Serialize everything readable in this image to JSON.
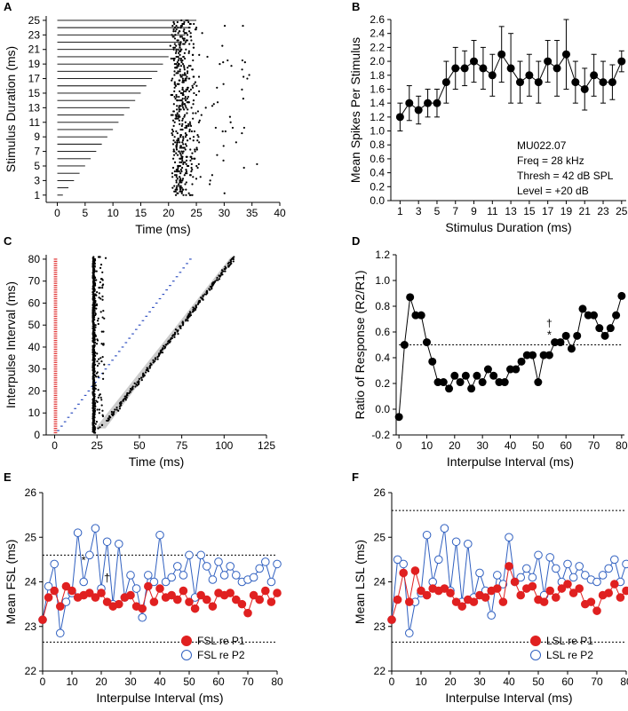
{
  "panels": {
    "A": {
      "label": "A"
    },
    "B": {
      "label": "B"
    },
    "C": {
      "label": "C"
    },
    "D": {
      "label": "D"
    },
    "E": {
      "label": "E"
    },
    "F": {
      "label": "F"
    }
  },
  "chart_data": [
    {
      "id": "A",
      "type": "scatter",
      "xlabel": "Time (ms)",
      "ylabel": "Stimulus Duration (ms)",
      "xlim": [
        -2,
        40
      ],
      "ylim": [
        0,
        25.6
      ],
      "xticks": [
        0,
        5,
        10,
        15,
        20,
        25,
        30,
        35,
        40
      ],
      "yticks": [
        1,
        3,
        5,
        7,
        9,
        11,
        13,
        15,
        17,
        19,
        21,
        23,
        25
      ],
      "stimulus_bars": "horizontal line from 0 to duration for each trial duration 1-25 ms",
      "spike_time_range": [
        20,
        38
      ],
      "spike_time_mode": 22.5
    },
    {
      "id": "B",
      "type": "line",
      "xlabel": "Stimulus Duration (ms)",
      "ylabel": "Mean Spikes Per Stimulus",
      "xlim": [
        0,
        25.5
      ],
      "ylim": [
        0,
        2.6
      ],
      "xticks": [
        1,
        3,
        5,
        7,
        9,
        11,
        13,
        15,
        17,
        19,
        21,
        23,
        25
      ],
      "yticks": [
        0.0,
        0.2,
        0.4,
        0.6,
        0.8,
        1.0,
        1.2,
        1.4,
        1.6,
        1.8,
        2.0,
        2.2,
        2.4,
        2.6
      ],
      "x": [
        1,
        2,
        3,
        4,
        5,
        6,
        7,
        8,
        9,
        10,
        11,
        12,
        13,
        14,
        15,
        16,
        17,
        18,
        19,
        20,
        21,
        22,
        23,
        24,
        25
      ],
      "y": [
        1.2,
        1.4,
        1.3,
        1.4,
        1.4,
        1.7,
        1.9,
        1.9,
        2.0,
        1.9,
        1.8,
        2.1,
        1.9,
        1.7,
        1.8,
        1.7,
        2.0,
        1.9,
        2.1,
        1.7,
        1.6,
        1.8,
        1.7,
        1.7,
        2.0
      ],
      "err": [
        0.2,
        0.25,
        0.2,
        0.2,
        0.2,
        0.3,
        0.3,
        0.25,
        0.3,
        0.3,
        0.3,
        0.4,
        0.5,
        0.3,
        0.3,
        0.3,
        0.3,
        0.4,
        0.5,
        0.3,
        0.3,
        0.3,
        0.3,
        0.25,
        0.15
      ],
      "annotation": [
        "MU022.07",
        "Freq = 28 kHz",
        "Thresh = 42 dB SPL",
        "Level = +20 dB"
      ]
    },
    {
      "id": "C",
      "type": "scatter",
      "xlabel": "Time (ms)",
      "ylabel": "Interpulse Interval (ms)",
      "xlim": [
        -5,
        125
      ],
      "ylim": [
        0,
        82
      ],
      "xticks": [
        0,
        25,
        50,
        75,
        100,
        125
      ],
      "yticks": [
        0,
        10,
        20,
        30,
        40,
        50,
        60,
        70,
        80
      ],
      "pulse1_color": "#e03030",
      "pulse2_color": "#3050c0",
      "pulse1_time": 0,
      "response1_time": 23,
      "response2_offset": 25
    },
    {
      "id": "D",
      "type": "line",
      "xlabel": "Interpulse Interval (ms)",
      "ylabel": "Ratio of Response (R2/R1)",
      "xlim": [
        -1,
        81
      ],
      "ylim": [
        -0.2,
        1.2
      ],
      "xticks": [
        0,
        10,
        20,
        30,
        40,
        50,
        60,
        70,
        80
      ],
      "yticks": [
        -0.2,
        0.0,
        0.2,
        0.4,
        0.6,
        0.8,
        1.0,
        1.2
      ],
      "reference_line": 0.5,
      "x": [
        0,
        2,
        4,
        6,
        8,
        10,
        12,
        14,
        16,
        18,
        20,
        22,
        24,
        26,
        28,
        30,
        32,
        34,
        36,
        38,
        40,
        42,
        44,
        46,
        48,
        50,
        52,
        54,
        56,
        58,
        60,
        62,
        64,
        66,
        68,
        70,
        72,
        74,
        76,
        78,
        80
      ],
      "y": [
        -0.06,
        0.5,
        0.87,
        0.73,
        0.73,
        0.52,
        0.37,
        0.21,
        0.21,
        0.16,
        0.26,
        0.21,
        0.26,
        0.16,
        0.26,
        0.21,
        0.31,
        0.26,
        0.21,
        0.21,
        0.31,
        0.31,
        0.37,
        0.42,
        0.42,
        0.21,
        0.42,
        0.42,
        0.52,
        0.52,
        0.57,
        0.47,
        0.57,
        0.78,
        0.73,
        0.73,
        0.63,
        0.57,
        0.63,
        0.73,
        0.88
      ],
      "marks": [
        {
          "x": 54,
          "text": "†"
        },
        {
          "x": 54,
          "text": "*"
        }
      ]
    },
    {
      "id": "E",
      "type": "line",
      "xlabel": "Interpulse Interval (ms)",
      "ylabel": "Mean FSL (ms)",
      "xlim": [
        0,
        80
      ],
      "ylim": [
        22,
        26
      ],
      "xticks": [
        0,
        10,
        20,
        30,
        40,
        50,
        60,
        70,
        80
      ],
      "yticks": [
        22,
        23,
        24,
        25,
        26
      ],
      "ref_lines": [
        24.6,
        22.65
      ],
      "x": [
        0,
        2,
        4,
        6,
        8,
        10,
        12,
        14,
        16,
        18,
        20,
        22,
        24,
        26,
        28,
        30,
        32,
        34,
        36,
        38,
        40,
        42,
        44,
        46,
        48,
        50,
        52,
        54,
        56,
        58,
        60,
        62,
        64,
        66,
        68,
        70,
        72,
        74,
        76,
        78,
        80
      ],
      "series": [
        {
          "name": "FSL re P1",
          "color": "#e02020",
          "filled": true,
          "values": [
            23.15,
            23.65,
            23.8,
            23.45,
            23.9,
            23.8,
            23.65,
            23.7,
            23.75,
            23.65,
            23.75,
            23.55,
            23.45,
            23.5,
            23.65,
            23.7,
            23.45,
            23.4,
            23.9,
            23.55,
            23.85,
            23.65,
            23.7,
            23.6,
            23.8,
            23.55,
            23.4,
            23.7,
            23.6,
            23.45,
            23.75,
            23.7,
            23.75,
            23.6,
            23.5,
            23.3,
            23.7,
            23.6,
            23.8,
            23.55,
            23.75
          ]
        },
        {
          "name": "FSL re P2",
          "color": "#3060c0",
          "filled": false,
          "values": [
            23.15,
            23.9,
            24.4,
            22.85,
            23.55,
            23.75,
            25.1,
            24.0,
            24.6,
            25.2,
            23.85,
            24.9,
            23.5,
            24.85,
            23.65,
            24.15,
            23.85,
            23.2,
            24.15,
            24.0,
            25.05,
            24.0,
            24.1,
            24.35,
            24.15,
            24.6,
            23.65,
            24.6,
            24.35,
            24.05,
            24.45,
            24.15,
            24.35,
            24.15,
            24.0,
            24.05,
            24.1,
            24.3,
            24.45,
            24.0,
            24.4
          ]
        }
      ],
      "marks": [
        {
          "x": 14,
          "y": 24.4,
          "text": "*"
        },
        {
          "x": 22,
          "y": 24.0,
          "text": "†"
        }
      ]
    },
    {
      "id": "F",
      "type": "line",
      "xlabel": "Interpulse Interval (ms)",
      "ylabel": "Mean LSL (ms)",
      "xlim": [
        0,
        80
      ],
      "ylim": [
        22,
        26
      ],
      "xticks": [
        0,
        10,
        20,
        30,
        40,
        50,
        60,
        70,
        80
      ],
      "yticks": [
        22,
        23,
        24,
        25,
        26
      ],
      "ref_lines": [
        25.6,
        22.65
      ],
      "x": [
        0,
        2,
        4,
        6,
        8,
        10,
        12,
        14,
        16,
        18,
        20,
        22,
        24,
        26,
        28,
        30,
        32,
        34,
        36,
        38,
        40,
        42,
        44,
        46,
        48,
        50,
        52,
        54,
        56,
        58,
        60,
        62,
        64,
        66,
        68,
        70,
        72,
        74,
        76,
        78,
        80
      ],
      "series": [
        {
          "name": "LSL re P1",
          "color": "#e02020",
          "filled": true,
          "values": [
            23.15,
            23.6,
            24.2,
            23.55,
            24.25,
            23.8,
            23.7,
            23.85,
            23.8,
            23.85,
            23.75,
            23.55,
            23.45,
            23.6,
            23.55,
            23.7,
            23.65,
            23.8,
            23.85,
            23.55,
            24.35,
            24.0,
            23.7,
            23.85,
            23.9,
            23.6,
            23.55,
            23.8,
            23.65,
            23.85,
            23.95,
            23.75,
            23.85,
            23.5,
            23.55,
            23.35,
            23.7,
            23.75,
            23.95,
            23.65,
            23.8
          ]
        },
        {
          "name": "LSL re P2",
          "color": "#3060c0",
          "filled": false,
          "values": [
            23.15,
            24.5,
            24.4,
            22.85,
            23.55,
            23.75,
            25.05,
            24.0,
            24.5,
            25.2,
            23.8,
            24.9,
            23.55,
            24.85,
            23.65,
            24.2,
            23.8,
            23.25,
            24.15,
            23.95,
            25.0,
            24.0,
            24.1,
            24.3,
            24.1,
            24.6,
            23.7,
            24.55,
            24.3,
            24.0,
            24.4,
            24.1,
            24.35,
            24.15,
            24.05,
            24.0,
            24.15,
            24.3,
            24.5,
            24.0,
            24.4
          ]
        }
      ]
    }
  ]
}
